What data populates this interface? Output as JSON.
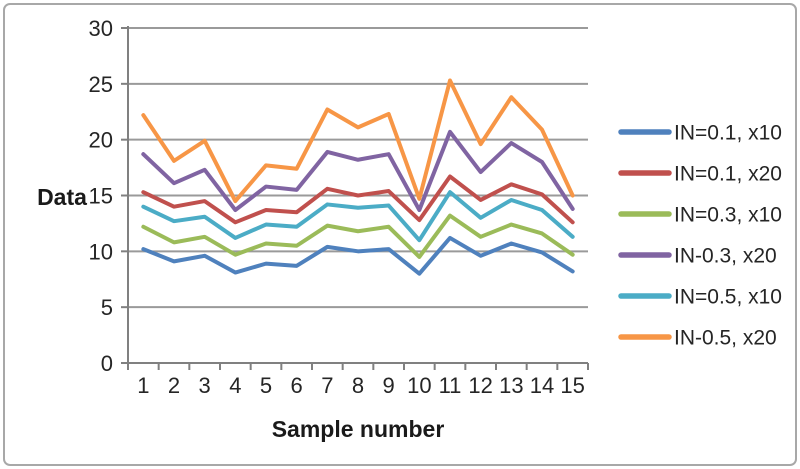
{
  "figure": {
    "background_color": "#FFFFFF",
    "frame_color": "#A8A8A8",
    "gridline_color": "#9A9A9A",
    "axis_color": "#808080",
    "text_color": "#252525"
  },
  "chart_data": {
    "type": "line",
    "title": "",
    "xlabel": "Sample number",
    "ylabel": "Data",
    "x": [
      1,
      2,
      3,
      4,
      5,
      6,
      7,
      8,
      9,
      10,
      11,
      12,
      13,
      14,
      15
    ],
    "ylim": [
      0,
      30
    ],
    "ytick_step": 5,
    "yticks": [
      0,
      5,
      10,
      15,
      20,
      25,
      30
    ],
    "grid": "horizontal",
    "legend_position": "right",
    "series": [
      {
        "name": "IN=0.1, x10",
        "color": "#4F81BD",
        "values": [
          10.2,
          9.1,
          9.6,
          8.1,
          8.9,
          8.7,
          10.4,
          10.0,
          10.2,
          8.0,
          11.2,
          9.6,
          10.7,
          9.9,
          8.2
        ]
      },
      {
        "name": "IN=0.1, x20",
        "color": "#C0504D",
        "values": [
          15.3,
          14.0,
          14.5,
          12.6,
          13.7,
          13.5,
          15.6,
          15.0,
          15.4,
          12.8,
          16.7,
          14.6,
          16.0,
          15.1,
          12.6
        ]
      },
      {
        "name": "IN=0.3, x10",
        "color": "#9BBB59",
        "values": [
          12.2,
          10.8,
          11.3,
          9.7,
          10.7,
          10.5,
          12.3,
          11.8,
          12.2,
          9.5,
          13.2,
          11.3,
          12.4,
          11.6,
          9.7
        ]
      },
      {
        "name": "IN-0.3, x20",
        "color": "#8064A2",
        "values": [
          18.7,
          16.1,
          17.3,
          13.7,
          15.8,
          15.5,
          18.9,
          18.2,
          18.7,
          13.7,
          20.7,
          17.1,
          19.7,
          18.0,
          13.8
        ]
      },
      {
        "name": "IN=0.5, x10",
        "color": "#4BACC6",
        "values": [
          14.0,
          12.7,
          13.1,
          11.2,
          12.4,
          12.2,
          14.2,
          13.9,
          14.1,
          11.0,
          15.3,
          13.0,
          14.6,
          13.7,
          11.3
        ]
      },
      {
        "name": "IN-0.5, x20",
        "color": "#F79646",
        "values": [
          22.2,
          18.1,
          19.9,
          14.5,
          17.7,
          17.4,
          22.7,
          21.1,
          22.3,
          14.7,
          25.3,
          19.6,
          23.8,
          20.9,
          15.0
        ]
      }
    ]
  }
}
